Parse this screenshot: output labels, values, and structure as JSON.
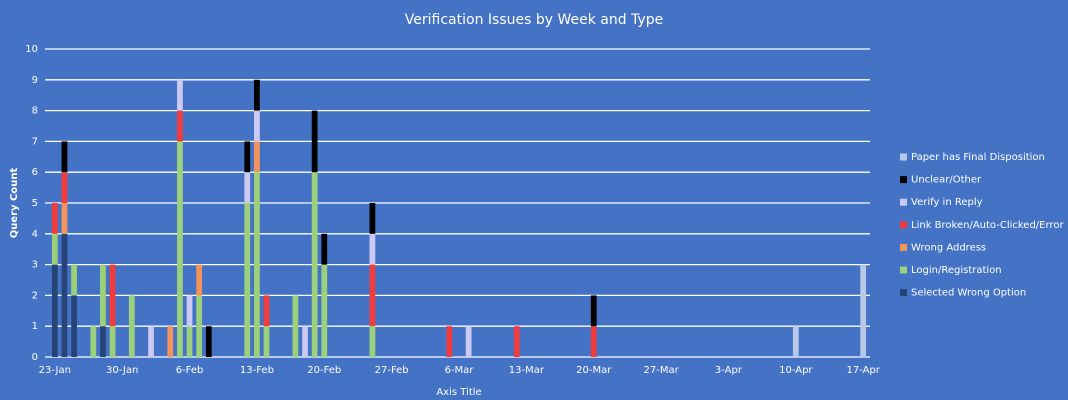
{
  "chart_data": {
    "type": "stacked_bar",
    "title": "Verification Issues by Week and Type",
    "x_label": "Axis Title",
    "y_label": "Query Count",
    "ylim": [
      0,
      10
    ],
    "yticks": [
      0,
      1,
      2,
      3,
      4,
      5,
      6,
      7,
      8,
      9,
      10
    ],
    "grid": true,
    "legend": "right",
    "categories": [
      "23-Jan",
      null,
      null,
      null,
      null,
      null,
      null,
      "30-Jan",
      null,
      null,
      null,
      null,
      null,
      null,
      "6-Feb",
      null,
      null,
      null,
      null,
      null,
      null,
      "13-Feb",
      null,
      null,
      null,
      null,
      null,
      null,
      "20-Feb",
      null,
      null,
      null,
      null,
      null,
      null,
      "27-Feb",
      null,
      null,
      null,
      null,
      null,
      null,
      "6-Mar",
      null,
      null,
      null,
      null,
      null,
      null,
      "13-Mar",
      null,
      null,
      null,
      null,
      null,
      null,
      "20-Mar",
      null,
      null,
      null,
      null,
      null,
      null,
      "27-Mar",
      null,
      null,
      null,
      null,
      null,
      null,
      "3-Apr",
      null,
      null,
      null,
      null,
      null,
      null,
      "10-Apr",
      null,
      null,
      null,
      null,
      null,
      null,
      "17-Apr"
    ],
    "series": [
      {
        "name": "Selected Wrong Option",
        "color": "#264478",
        "values": [
          3,
          4,
          2,
          null,
          null,
          1,
          null,
          null,
          null,
          null,
          null,
          null,
          null,
          null,
          null,
          null,
          null,
          null,
          null,
          null,
          null,
          null,
          null,
          null,
          null,
          null,
          null,
          null,
          null,
          null,
          null,
          null,
          null,
          null,
          null,
          null,
          null,
          null,
          null,
          null,
          null,
          null,
          null,
          null,
          null,
          null,
          null,
          null,
          null,
          null,
          null,
          null,
          null,
          null,
          null,
          null,
          null,
          null,
          null,
          null,
          null,
          null,
          null,
          null,
          null,
          null,
          null,
          null,
          null,
          null,
          null,
          null,
          null,
          null,
          null,
          null,
          null,
          null,
          null,
          null,
          null,
          null,
          null,
          null,
          null
        ]
      },
      {
        "name": "Login/Registration",
        "color": "#9dd07a",
        "values": [
          1,
          null,
          1,
          null,
          1,
          2,
          1,
          null,
          2,
          null,
          null,
          null,
          null,
          7,
          1,
          2,
          null,
          null,
          null,
          null,
          5,
          6,
          1,
          null,
          null,
          2,
          null,
          6,
          3,
          null,
          null,
          null,
          null,
          1,
          null,
          null,
          null,
          null,
          null,
          null,
          null,
          null,
          null,
          null,
          null,
          null,
          null,
          null,
          null,
          null,
          null,
          null,
          null,
          null,
          null,
          null,
          null,
          null,
          null,
          null,
          null,
          null,
          null,
          null,
          null,
          null,
          null,
          null,
          null,
          null,
          null,
          null,
          null,
          null,
          null,
          null,
          null,
          null,
          null,
          null,
          null,
          null,
          null,
          null,
          null
        ]
      },
      {
        "name": "Wrong Address",
        "color": "#f4945c",
        "values": [
          null,
          1,
          null,
          null,
          null,
          null,
          null,
          null,
          null,
          null,
          null,
          null,
          1,
          null,
          null,
          1,
          null,
          null,
          null,
          null,
          null,
          1,
          null,
          null,
          null,
          null,
          null,
          null,
          null,
          null,
          null,
          null,
          null,
          null,
          null,
          null,
          null,
          null,
          null,
          null,
          null,
          null,
          null,
          null,
          null,
          null,
          null,
          null,
          null,
          null,
          null,
          null,
          null,
          null,
          null,
          null,
          null,
          null,
          null,
          null,
          null,
          null,
          null,
          null,
          null,
          null,
          null,
          null,
          null,
          null,
          null,
          null,
          null,
          null,
          null,
          null,
          null,
          null,
          null,
          null,
          null,
          null,
          null,
          null,
          null
        ]
      },
      {
        "name": "Link Broken/Auto-Clicked/Error",
        "color": "#f03c3c",
        "values": [
          1,
          1,
          null,
          null,
          null,
          null,
          2,
          null,
          null,
          null,
          null,
          null,
          null,
          1,
          null,
          null,
          null,
          null,
          null,
          null,
          null,
          null,
          1,
          null,
          null,
          null,
          null,
          null,
          null,
          null,
          null,
          null,
          null,
          2,
          null,
          null,
          null,
          null,
          null,
          null,
          null,
          1,
          null,
          null,
          null,
          null,
          null,
          null,
          1,
          null,
          null,
          null,
          null,
          null,
          null,
          null,
          1,
          null,
          null,
          null,
          null,
          null,
          null,
          null,
          null,
          null,
          null,
          null,
          null,
          null,
          null,
          null,
          null,
          null,
          null,
          null,
          null,
          null,
          null,
          null,
          null,
          null,
          null,
          null,
          null
        ]
      },
      {
        "name": "Verify in Reply",
        "color": "#cbc8f2",
        "values": [
          null,
          null,
          null,
          null,
          null,
          null,
          null,
          null,
          null,
          null,
          1,
          null,
          null,
          1,
          1,
          null,
          null,
          null,
          null,
          null,
          1,
          1,
          null,
          null,
          null,
          null,
          1,
          null,
          null,
          null,
          null,
          null,
          null,
          1,
          null,
          null,
          null,
          null,
          null,
          null,
          null,
          null,
          null,
          1,
          null,
          null,
          null,
          null,
          null,
          null,
          null,
          null,
          null,
          null,
          null,
          null,
          null,
          null,
          null,
          null,
          null,
          null,
          null,
          null,
          null,
          null,
          null,
          null,
          null,
          null,
          null,
          null,
          null,
          null,
          null,
          null,
          null,
          null,
          null,
          null,
          null,
          null,
          null,
          null,
          null
        ]
      },
      {
        "name": "Unclear/Other",
        "color": "#000000",
        "values": [
          null,
          1,
          null,
          null,
          null,
          null,
          null,
          null,
          null,
          null,
          null,
          null,
          null,
          null,
          null,
          null,
          1,
          null,
          null,
          null,
          1,
          1,
          null,
          null,
          null,
          null,
          null,
          2,
          1,
          null,
          null,
          null,
          null,
          1,
          null,
          null,
          null,
          null,
          null,
          null,
          null,
          null,
          null,
          null,
          null,
          null,
          null,
          null,
          null,
          null,
          null,
          null,
          null,
          null,
          null,
          null,
          1,
          null,
          null,
          null,
          null,
          null,
          null,
          null,
          null,
          null,
          null,
          null,
          null,
          null,
          null,
          null,
          null,
          null,
          null,
          null,
          null,
          null,
          null,
          null,
          null,
          null,
          null,
          null,
          null
        ]
      },
      {
        "name": "Paper has Final Disposition",
        "color": "#b8c9e8",
        "values": [
          null,
          null,
          null,
          null,
          null,
          null,
          null,
          null,
          null,
          null,
          null,
          null,
          null,
          null,
          null,
          null,
          null,
          null,
          null,
          null,
          null,
          null,
          null,
          null,
          null,
          null,
          null,
          null,
          null,
          null,
          null,
          null,
          null,
          null,
          null,
          null,
          null,
          null,
          null,
          null,
          null,
          null,
          null,
          null,
          null,
          null,
          null,
          null,
          null,
          null,
          null,
          null,
          null,
          null,
          null,
          null,
          null,
          null,
          null,
          null,
          null,
          null,
          null,
          null,
          null,
          null,
          null,
          null,
          null,
          null,
          null,
          null,
          null,
          null,
          null,
          null,
          null,
          1,
          null,
          null,
          null,
          null,
          null,
          null,
          3
        ]
      }
    ]
  }
}
